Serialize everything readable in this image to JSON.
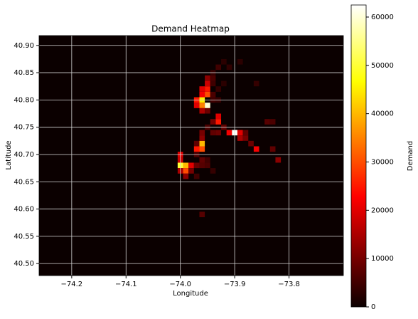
{
  "chart_data": {
    "type": "heatmap",
    "title": "Demand Heatmap",
    "x_label": "Longitude",
    "y_label": "Latitude",
    "colormap": "hot",
    "grid": true,
    "colorbar_label": "Demand",
    "xlim": [
      -74.26,
      -73.7
    ],
    "ylim": [
      40.478,
      40.918
    ],
    "xticks": [
      {
        "value": -74.2,
        "label": "−74.2"
      },
      {
        "value": -74.1,
        "label": "−74.1"
      },
      {
        "value": -74.0,
        "label": "−74.0"
      },
      {
        "value": -73.9,
        "label": "−73.9"
      },
      {
        "value": -73.8,
        "label": "−73.8"
      }
    ],
    "yticks": [
      {
        "value": 40.5,
        "label": "40.50"
      },
      40.55,
      {
        "value": 40.6,
        "label": "40.60"
      },
      40.65,
      {
        "value": 40.7,
        "label": "40.70"
      },
      40.75,
      {
        "value": 40.8,
        "label": "40.80"
      },
      40.85,
      {
        "value": 40.9,
        "label": "40.90"
      }
    ],
    "clim": [
      0,
      62500
    ],
    "cticks": [
      0,
      10000,
      20000,
      30000,
      40000,
      50000,
      60000
    ],
    "x": [
      -73.96,
      -73.95,
      -73.96,
      -73.97,
      -73.96,
      -73.95,
      -73.95,
      -73.96,
      -73.95,
      -73.95,
      -73.94,
      -73.94,
      -73.93,
      -73.94,
      -73.93,
      -73.92,
      -73.91,
      -73.89,
      -73.96,
      -73.95,
      -73.97,
      -73.94,
      -73.93,
      -73.92,
      -73.86,
      -73.94,
      -73.93,
      -73.93,
      -73.94,
      -73.92,
      -73.91,
      -73.9,
      -73.89,
      -73.89,
      -73.88,
      -73.88,
      -73.87,
      -73.86,
      -73.84,
      -73.83,
      -73.83,
      -73.82,
      -73.94,
      -73.93,
      -73.96,
      -73.95,
      -73.96,
      -73.96,
      -73.97,
      -73.96,
      -73.97,
      -74.0,
      -74.0,
      -74.0,
      -73.99,
      -73.98,
      -73.99,
      -74.0,
      -73.99,
      -73.98,
      -73.97,
      -73.96,
      -73.95,
      -73.95,
      -73.94,
      -73.97,
      -73.97,
      -73.96,
      -73.96
    ],
    "y": [
      40.8,
      40.79,
      40.79,
      40.8,
      40.81,
      40.81,
      40.82,
      40.82,
      40.83,
      40.84,
      40.84,
      40.83,
      40.82,
      40.85,
      40.86,
      40.87,
      40.86,
      40.87,
      40.78,
      40.78,
      40.79,
      40.8,
      40.8,
      40.83,
      40.83,
      40.81,
      40.77,
      40.76,
      40.76,
      40.75,
      40.74,
      40.74,
      40.74,
      40.73,
      40.73,
      40.74,
      40.72,
      40.71,
      40.76,
      40.76,
      40.71,
      40.69,
      40.74,
      40.74,
      40.74,
      40.75,
      40.72,
      40.71,
      40.71,
      40.73,
      40.72,
      40.7,
      40.69,
      40.68,
      40.68,
      40.68,
      40.67,
      40.67,
      40.66,
      40.67,
      40.68,
      40.68,
      40.68,
      40.69,
      40.67,
      40.66,
      40.7,
      40.69,
      40.59
    ],
    "values": [
      45000,
      60000,
      35000,
      25000,
      22000,
      30000,
      25000,
      20000,
      18000,
      12000,
      6000,
      5000,
      4000,
      4000,
      5000,
      3000,
      3500,
      3000,
      15000,
      9000,
      20000,
      5000,
      4000,
      3000,
      4000,
      6000,
      20000,
      25000,
      10000,
      8000,
      22000,
      62000,
      20000,
      15000,
      10000,
      8000,
      9000,
      22000,
      7000,
      6000,
      8000,
      12000,
      8000,
      9000,
      10000,
      6000,
      40000,
      30000,
      25000,
      12000,
      8000,
      20000,
      18000,
      50000,
      40000,
      20000,
      30000,
      15000,
      12000,
      10000,
      9000,
      7000,
      6000,
      5000,
      4000,
      5000,
      6000,
      8000,
      7000
    ]
  }
}
